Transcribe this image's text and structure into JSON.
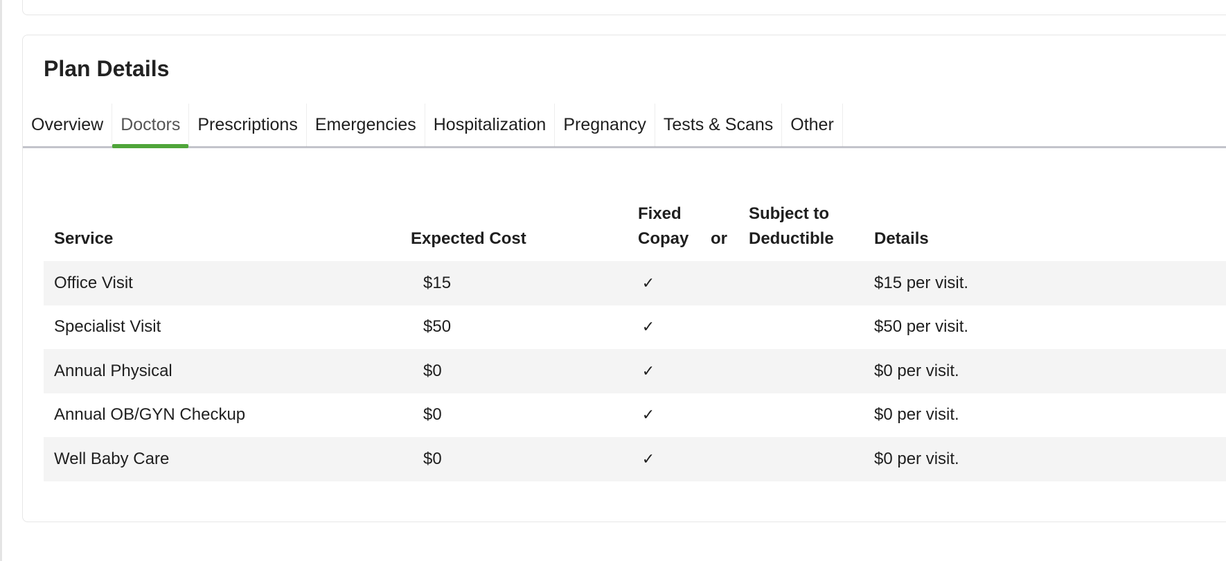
{
  "plan_details": {
    "title": "Plan Details",
    "tabs": [
      "Overview",
      "Doctors",
      "Prescriptions",
      "Emergencies",
      "Hospitalization",
      "Pregnancy",
      "Tests & Scans",
      "Other"
    ],
    "active_tab": "Doctors",
    "accent_color": "#4fa53a",
    "table": {
      "headers": {
        "service": "Service",
        "expected_cost": "Expected Cost",
        "fixed_copay": "Fixed Copay",
        "or": "or",
        "subject_to_deductible": "Subject to Deductible",
        "details": "Details"
      },
      "rows": [
        {
          "service": "Office Visit",
          "expected_cost": "$15",
          "fixed_copay": "✓",
          "subject_to_deductible": "",
          "details": "$15 per visit."
        },
        {
          "service": "Specialist Visit",
          "expected_cost": "$50",
          "fixed_copay": "✓",
          "subject_to_deductible": "",
          "details": "$50 per visit."
        },
        {
          "service": "Annual Physical",
          "expected_cost": "$0",
          "fixed_copay": "✓",
          "subject_to_deductible": "",
          "details": "$0 per visit."
        },
        {
          "service": "Annual OB/GYN Checkup",
          "expected_cost": "$0",
          "fixed_copay": "✓",
          "subject_to_deductible": "",
          "details": "$0 per visit."
        },
        {
          "service": "Well Baby Care",
          "expected_cost": "$0",
          "fixed_copay": "✓",
          "subject_to_deductible": "",
          "details": "$0 per visit."
        }
      ]
    }
  }
}
